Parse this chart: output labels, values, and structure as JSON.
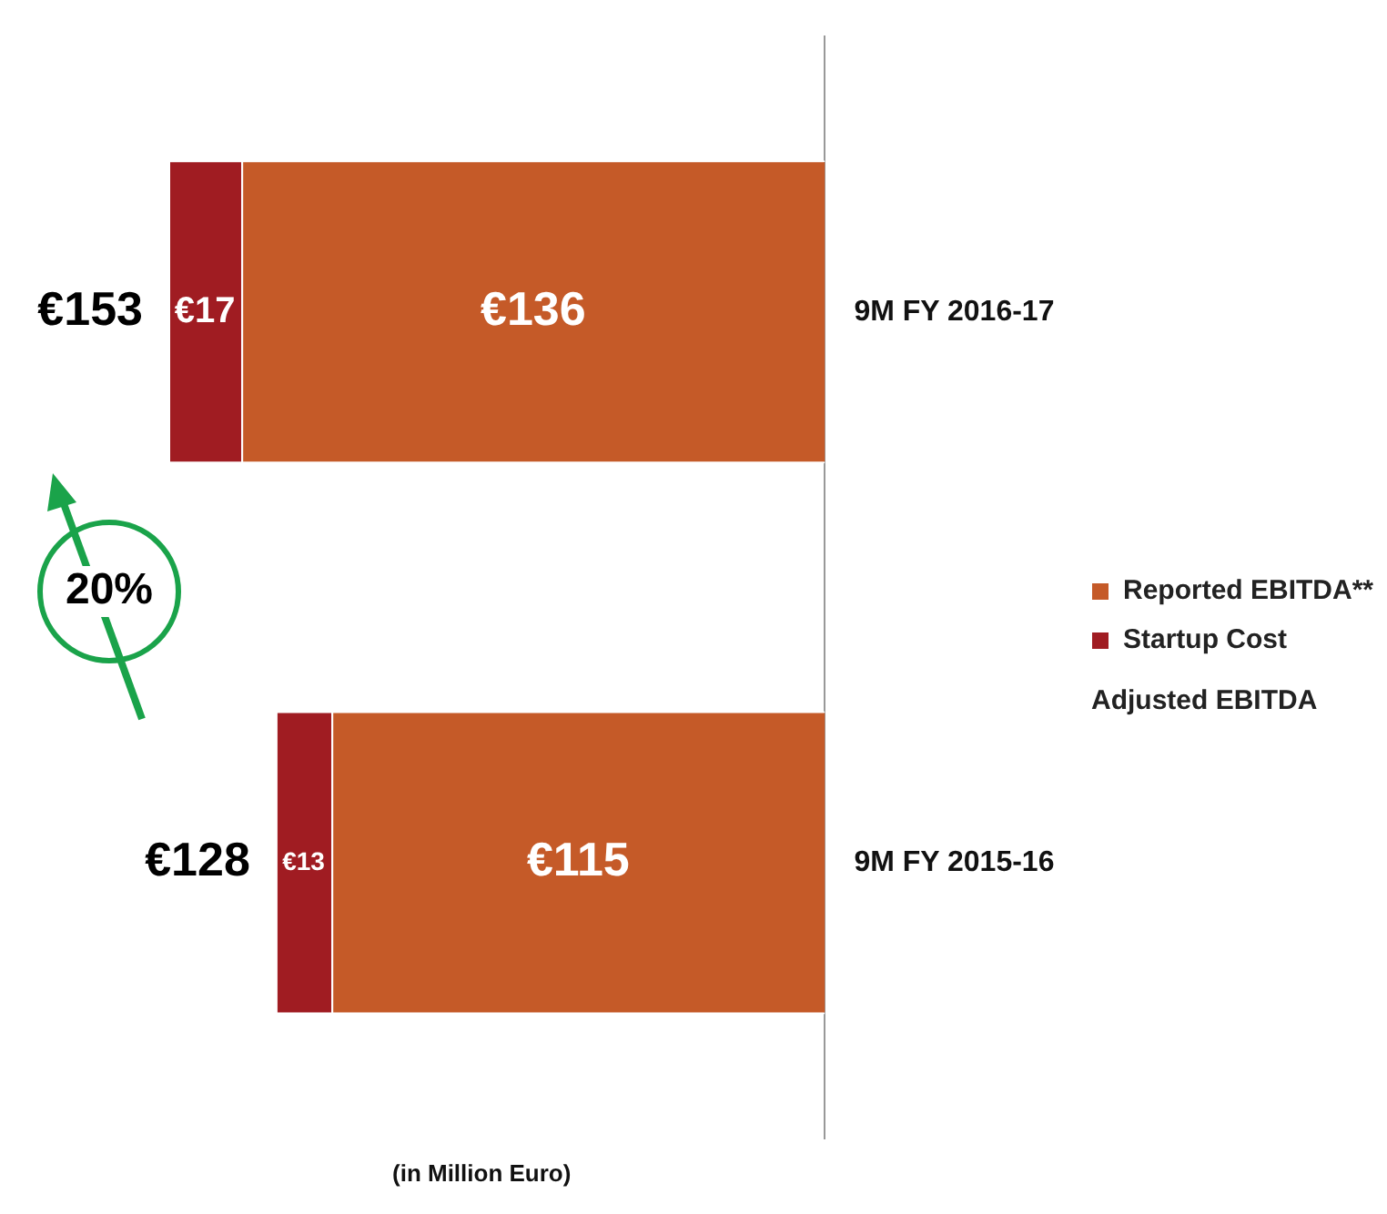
{
  "chart_data": {
    "type": "bar",
    "stacked": true,
    "orientation": "horizontal",
    "xlabel": "(in Million Euro)",
    "categories": [
      "9M FY 2016-17",
      "9M FY 2015-16"
    ],
    "series": [
      {
        "name": "Reported EBITDA**",
        "color": "#c55a28",
        "values": [
          136,
          115
        ],
        "value_labels": [
          "€136",
          "€115"
        ]
      },
      {
        "name": "Startup Cost",
        "color": "#a01c22",
        "values": [
          17,
          13
        ],
        "value_labels": [
          "€17",
          "€13"
        ]
      }
    ],
    "totals": [
      "€153",
      "€128"
    ],
    "annotations": [
      "20%",
      "Adjusted EBITDA"
    ],
    "legend": "right",
    "grid": false
  }
}
